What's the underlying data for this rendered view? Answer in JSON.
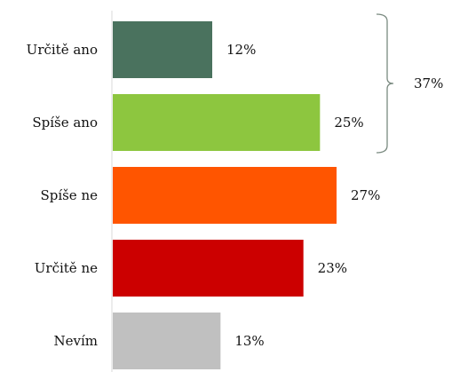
{
  "chart_data": {
    "type": "bar",
    "orientation": "horizontal",
    "categories": [
      "Určitě ano",
      "Spíše ano",
      "Spíše ne",
      "Určitě ne",
      "Nevím"
    ],
    "values": [
      12,
      25,
      27,
      23,
      13
    ],
    "value_labels": [
      "12%",
      "25%",
      "27%",
      "23%",
      "13%"
    ],
    "colors": [
      "#4a725e",
      "#8dc63f",
      "#ff5500",
      "#cc0000",
      "#c0c0c0"
    ],
    "xlim": [
      0,
      35
    ],
    "grid": false,
    "legend": "none",
    "bracket": {
      "categories": [
        "Určitě ano",
        "Spíše ano"
      ],
      "label": "37%"
    }
  }
}
